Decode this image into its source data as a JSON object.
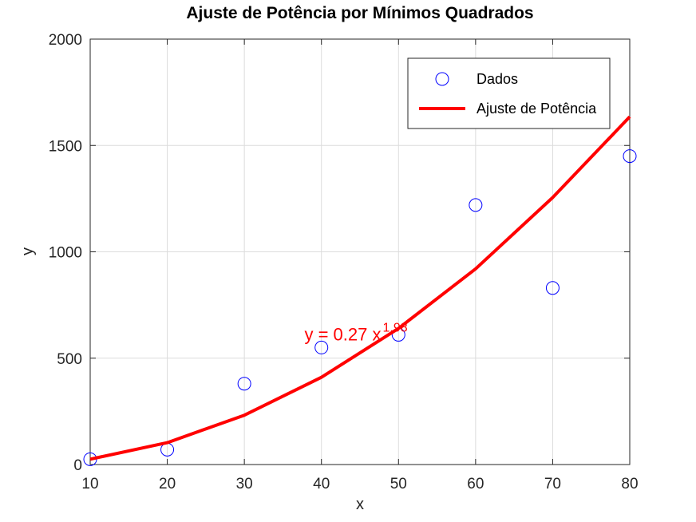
{
  "chart_data": {
    "type": "scatter",
    "title": "Ajuste de Potência por Mínimos Quadrados",
    "xlabel": "x",
    "ylabel": "y",
    "xlim": [
      10,
      80
    ],
    "ylim": [
      0,
      2000
    ],
    "xticks": [
      10,
      20,
      30,
      40,
      50,
      60,
      70,
      80
    ],
    "yticks": [
      0,
      500,
      1000,
      1500,
      2000
    ],
    "grid": true,
    "legend_position": "top-right",
    "series": [
      {
        "name": "Dados",
        "kind": "scatter",
        "marker": "circle-open",
        "color": "#0000ff",
        "x": [
          10,
          20,
          30,
          40,
          50,
          60,
          70,
          80
        ],
        "y": [
          25,
          70,
          380,
          550,
          610,
          1220,
          830,
          1450
        ]
      },
      {
        "name": "Ajuste de Potência",
        "kind": "line",
        "color": "#ff0000",
        "x": [
          10,
          20,
          30,
          40,
          50,
          60,
          70,
          80
        ],
        "y": [
          25,
          103,
          232,
          410,
          640,
          920,
          1255,
          1635
        ]
      }
    ],
    "annotation": {
      "base": "y = 0.27 x",
      "exponent": "1.98",
      "x": 37.8,
      "y": 610,
      "color": "#ff0000"
    }
  }
}
